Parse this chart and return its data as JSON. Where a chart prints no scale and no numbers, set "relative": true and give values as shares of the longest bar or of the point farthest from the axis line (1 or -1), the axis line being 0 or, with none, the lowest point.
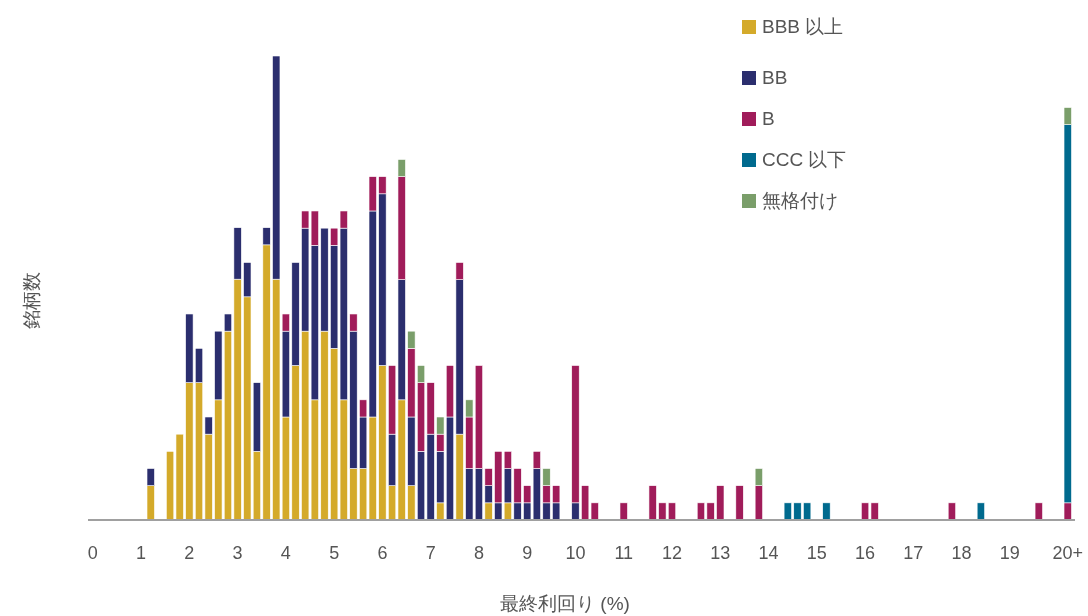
{
  "chart_data": {
    "type": "bar",
    "stacked": true,
    "relative": true,
    "xlabel": "最終利回り (%)",
    "ylabel": "銘柄数",
    "legend": "top right",
    "xlim": [
      -0.1,
      20.35
    ],
    "xticks": [
      0,
      1,
      2,
      3,
      4,
      5,
      6,
      7,
      8,
      9,
      10,
      11,
      12,
      13,
      14,
      15,
      16,
      17,
      18,
      19,
      {
        "value": 20.2,
        "label": "20+"
      }
    ],
    "x": [
      1.2,
      1.6,
      1.8,
      2.0,
      2.2,
      2.4,
      2.6,
      2.8,
      3.0,
      3.2,
      3.4,
      3.6,
      3.8,
      4.0,
      4.2,
      4.4,
      4.6,
      4.8,
      5.0,
      5.2,
      5.4,
      5.6,
      5.8,
      6.0,
      6.2,
      6.4,
      6.6,
      6.8,
      7.0,
      7.2,
      7.4,
      7.6,
      7.8,
      8.0,
      8.2,
      8.4,
      8.6,
      8.8,
      9.0,
      9.2,
      9.4,
      9.6,
      10.0,
      10.2,
      10.4,
      11.0,
      11.6,
      11.8,
      12.0,
      12.6,
      12.8,
      13.0,
      13.4,
      13.8,
      14.4,
      14.6,
      14.8,
      15.2,
      16.0,
      16.2,
      17.8,
      18.4,
      19.6,
      20.2
    ],
    "series": [
      {
        "name": "BBB 以上",
        "color": "#d4aa2a",
        "values": [
          0.074,
          0.148,
          0.185,
          0.296,
          0.296,
          0.185,
          0.259,
          0.407,
          0.519,
          0.481,
          0.148,
          0.593,
          0.519,
          0.222,
          0.333,
          0.407,
          0.259,
          0.407,
          0.37,
          0.259,
          0.111,
          0.111,
          0.222,
          0.333,
          0.074,
          0.259,
          0.074,
          0,
          0,
          0.037,
          0,
          0.185,
          0,
          0,
          0.037,
          0,
          0.037,
          0,
          0,
          0,
          0,
          0,
          0,
          0,
          0,
          0,
          0,
          0,
          0,
          0,
          0,
          0,
          0,
          0,
          0,
          0,
          0,
          0,
          0,
          0,
          0,
          0,
          0,
          0
        ]
      },
      {
        "name": "BB",
        "color": "#2b2e6e",
        "values": [
          0.037,
          0,
          0,
          0.148,
          0.074,
          0.037,
          0.148,
          0.037,
          0.111,
          0.074,
          0.148,
          0.037,
          0.481,
          0.185,
          0.222,
          0.222,
          0.333,
          0.222,
          0.222,
          0.37,
          0.296,
          0.111,
          0.444,
          0.37,
          0.111,
          0.259,
          0.148,
          0.148,
          0.185,
          0.111,
          0.222,
          0.333,
          0.111,
          0.111,
          0.037,
          0.037,
          0.074,
          0.037,
          0.037,
          0.111,
          0.037,
          0.037,
          0.037,
          0,
          0,
          0,
          0,
          0,
          0,
          0,
          0,
          0,
          0,
          0,
          0,
          0,
          0,
          0,
          0,
          0,
          0,
          0,
          0,
          0
        ]
      },
      {
        "name": "B",
        "color": "#a01c5a",
        "values": [
          0,
          0,
          0,
          0,
          0,
          0,
          0,
          0,
          0,
          0,
          0,
          0,
          0,
          0.037,
          0,
          0.037,
          0.074,
          0,
          0.037,
          0.037,
          0.037,
          0.037,
          0.074,
          0.037,
          0.148,
          0.222,
          0.148,
          0.148,
          0.111,
          0.037,
          0.111,
          0.037,
          0.111,
          0.222,
          0.037,
          0.111,
          0.037,
          0.074,
          0.037,
          0.037,
          0.037,
          0.037,
          0.296,
          0.074,
          0.037,
          0.037,
          0.074,
          0.037,
          0.037,
          0.037,
          0.037,
          0.074,
          0.074,
          0.074,
          0,
          0,
          0,
          0,
          0.037,
          0.037,
          0.037,
          0,
          0.037,
          0.037
        ]
      },
      {
        "name": "CCC 以下",
        "color": "#006a8e",
        "values": [
          0,
          0,
          0,
          0,
          0,
          0,
          0,
          0,
          0,
          0,
          0,
          0,
          0,
          0,
          0,
          0,
          0,
          0,
          0,
          0,
          0,
          0,
          0,
          0,
          0,
          0,
          0,
          0,
          0,
          0,
          0,
          0,
          0,
          0,
          0,
          0,
          0,
          0,
          0,
          0,
          0,
          0,
          0,
          0,
          0,
          0,
          0,
          0,
          0,
          0,
          0,
          0,
          0,
          0,
          0.037,
          0.037,
          0.037,
          0.037,
          0,
          0,
          0,
          0.037,
          0,
          0.815
        ]
      },
      {
        "name": "無格付け",
        "color": "#7a9e6a",
        "values": [
          0,
          0,
          0,
          0,
          0,
          0,
          0,
          0,
          0,
          0,
          0,
          0,
          0,
          0,
          0,
          0,
          0,
          0,
          0,
          0,
          0,
          0,
          0,
          0,
          0,
          0.037,
          0.037,
          0.037,
          0,
          0.037,
          0,
          0,
          0.037,
          0,
          0,
          0,
          0,
          0,
          0,
          0,
          0.037,
          0,
          0,
          0,
          0,
          0,
          0,
          0,
          0,
          0,
          0,
          0,
          0,
          0.037,
          0,
          0,
          0,
          0,
          0,
          0,
          0,
          0,
          0,
          0.037
        ]
      }
    ]
  }
}
